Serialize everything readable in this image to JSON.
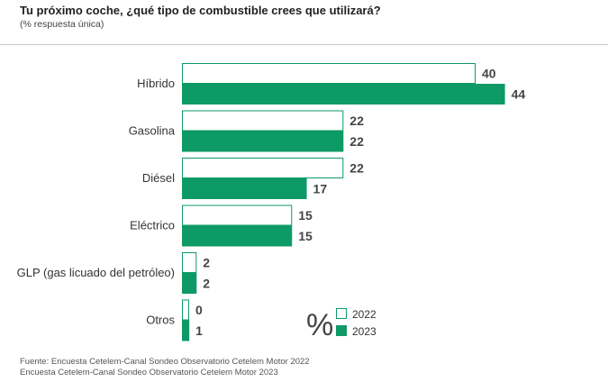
{
  "chart_data": {
    "type": "bar",
    "orientation": "horizontal",
    "title": "Tu próximo coche, ¿qué tipo de combustible crees que utilizará?",
    "subtitle": "(% respuesta única)",
    "categories": [
      "Híbrido",
      "Gasolina",
      "Diésel",
      "Eléctrico",
      "GLP (gas licuado del petróleo)",
      "Otros"
    ],
    "series": [
      {
        "name": "2022",
        "values": [
          40,
          22,
          22,
          15,
          2,
          0
        ]
      },
      {
        "name": "2023",
        "values": [
          44,
          22,
          17,
          15,
          2,
          1
        ]
      }
    ],
    "xlim": [
      0,
      50
    ],
    "grid": false,
    "legend_placement": "bottom-right",
    "legend_symbol": "%",
    "colors": {
      "2022": "#ffffff",
      "2023": "#0e9a66",
      "outline": "#0e9a66",
      "value_text": "#444444"
    }
  },
  "source": {
    "line1": "Fuente: Encuesta Cetelem-Canal Sondeo Observatorio Cetelem Motor 2022",
    "line2": "Encuesta Cetelem-Canal Sondeo Observatorio Cetelem Motor 2023"
  }
}
